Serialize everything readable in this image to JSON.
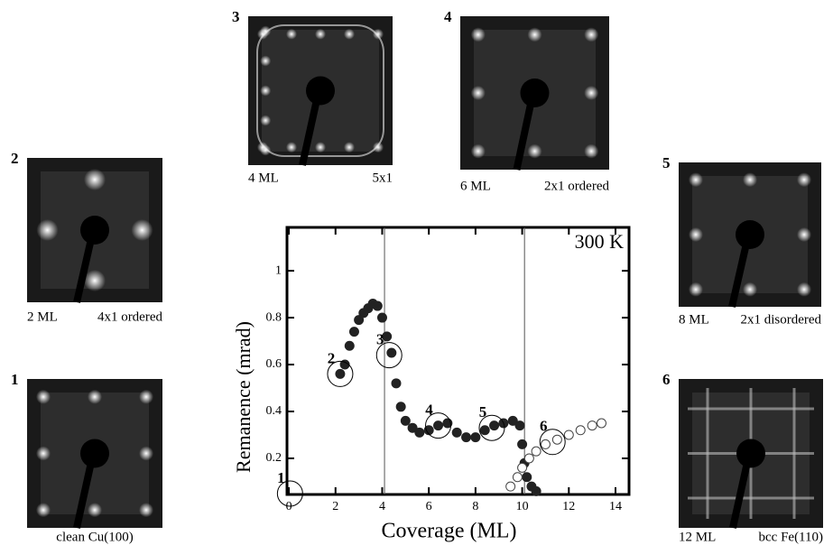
{
  "chart_data": {
    "type": "scatter",
    "xlabel": "Coverage (ML)",
    "ylabel": "Remanence (mrad)",
    "annotation": "300 K",
    "xlim": [
      -0.08,
      14.58
    ],
    "ylim": [
      0.046,
      1.185
    ],
    "xticks": [
      0,
      2,
      4,
      6,
      8,
      10,
      12,
      14
    ],
    "yticks": [
      0.2,
      0.4,
      0.6,
      0.8,
      1.0
    ],
    "vertical_lines": [
      4.1,
      10.1
    ],
    "series": [
      {
        "color": "#222222",
        "filled": true,
        "x": [
          2.2,
          2.4,
          2.6,
          2.8,
          3.0,
          3.2,
          3.4,
          3.6,
          3.8,
          4.0,
          4.2,
          4.4,
          4.6,
          4.8,
          5.0,
          5.3,
          5.6,
          6.0,
          6.4,
          6.8,
          7.2,
          7.6,
          8.0,
          8.4,
          8.8,
          9.2,
          9.6,
          9.9,
          10.0,
          10.1,
          10.2,
          10.4,
          10.6
        ],
        "values": [
          0.56,
          0.6,
          0.68,
          0.74,
          0.79,
          0.82,
          0.84,
          0.86,
          0.85,
          0.8,
          0.72,
          0.65,
          0.52,
          0.42,
          0.36,
          0.33,
          0.31,
          0.32,
          0.34,
          0.35,
          0.31,
          0.29,
          0.29,
          0.32,
          0.34,
          0.35,
          0.36,
          0.34,
          0.26,
          0.18,
          0.12,
          0.08,
          0.06
        ]
      },
      {
        "color": "#444444",
        "filled": false,
        "x": [
          9.5,
          9.8,
          10.0,
          10.3,
          10.6,
          11.0,
          11.5,
          12.0,
          12.5,
          13.0,
          13.4
        ],
        "values": [
          0.08,
          0.12,
          0.16,
          0.2,
          0.23,
          0.26,
          0.28,
          0.3,
          0.32,
          0.34,
          0.35
        ]
      }
    ],
    "markers": [
      {
        "label": "1",
        "x": 0.05,
        "y": 0.05
      },
      {
        "label": "2",
        "x": 2.2,
        "y": 0.56
      },
      {
        "label": "3",
        "x": 4.3,
        "y": 0.64
      },
      {
        "label": "4",
        "x": 6.4,
        "y": 0.34
      },
      {
        "label": "5",
        "x": 8.7,
        "y": 0.33
      },
      {
        "label": "6",
        "x": 11.3,
        "y": 0.27
      }
    ]
  },
  "panels": [
    {
      "number": "1",
      "captions": [
        "clean Cu(100)"
      ]
    },
    {
      "number": "2",
      "captions": [
        "2 ML",
        "4x1 ordered"
      ]
    },
    {
      "number": "3",
      "captions": [
        "4 ML",
        "5x1"
      ]
    },
    {
      "number": "4",
      "captions": [
        "6 ML",
        "2x1 ordered"
      ]
    },
    {
      "number": "5",
      "captions": [
        "8 ML",
        "2x1 disordered"
      ]
    },
    {
      "number": "6",
      "captions": [
        "12 ML",
        "bcc Fe(110)"
      ]
    }
  ]
}
